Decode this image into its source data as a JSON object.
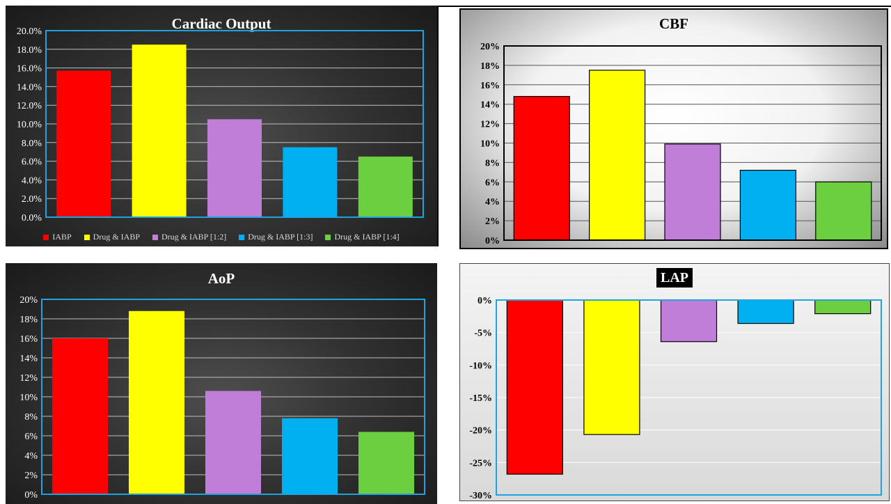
{
  "colors": [
    "#ff0000",
    "#ffff00",
    "#c07ed9",
    "#00b0f0",
    "#6ccf3f"
  ],
  "chart_data": [
    {
      "id": "co",
      "type": "bar",
      "title": "Cardiac  Output",
      "categories": [
        "IABP",
        "Drug & IABP",
        "Drug & IABP [1:2]",
        "Drug & IABP [1:3]",
        "Drug & IABP [1:4]"
      ],
      "values": [
        15.7,
        18.5,
        10.5,
        7.5,
        6.5
      ],
      "ylim": [
        0,
        20
      ],
      "yticks": [
        "0.0%",
        "2.0%",
        "4.0%",
        "6.0%",
        "8.0%",
        "10.0%",
        "12.0%",
        "14.0%",
        "16.0%",
        "18.0%",
        "20.0%"
      ],
      "legend": "bottom",
      "grid": true
    },
    {
      "id": "cbf",
      "type": "bar",
      "title": "CBF",
      "categories": [
        "IABP",
        "Drug & IABP",
        "Drug & IABP [1:2]",
        "Drug & IABP [1:3]",
        "Drug & IABP [1:4]"
      ],
      "values": [
        14.8,
        17.5,
        9.9,
        7.2,
        6.0
      ],
      "ylim": [
        0,
        20
      ],
      "yticks": [
        "0%",
        "2%",
        "4%",
        "6%",
        "8%",
        "10%",
        "12%",
        "14%",
        "16%",
        "18%",
        "20%"
      ],
      "grid": true
    },
    {
      "id": "aop",
      "type": "bar",
      "title": "AoP",
      "categories": [
        "IABP",
        "Drug & IABP",
        "Drug & IABP [1:2]",
        "Drug & IABP [1:3]",
        "Drug & IABP [1:4]"
      ],
      "values": [
        16.0,
        18.8,
        10.6,
        7.8,
        6.4
      ],
      "ylim": [
        0,
        20
      ],
      "yticks": [
        "0%",
        "2%",
        "4%",
        "6%",
        "8%",
        "10%",
        "12%",
        "14%",
        "16%",
        "18%",
        "20%"
      ],
      "grid": true
    },
    {
      "id": "lap",
      "type": "bar",
      "title": "LAP",
      "categories": [
        "IABP",
        "Drug & IABP",
        "Drug & IABP [1:2]",
        "Drug & IABP [1:3]",
        "Drug & IABP [1:4]"
      ],
      "values": [
        -26.8,
        -20.7,
        -6.4,
        -3.6,
        -2.1
      ],
      "ylim": [
        -30,
        0
      ],
      "yticks": [
        "-30%",
        "-25%",
        "-20%",
        "-15%",
        "-10%",
        "-5%",
        "0%"
      ],
      "grid": true
    }
  ]
}
